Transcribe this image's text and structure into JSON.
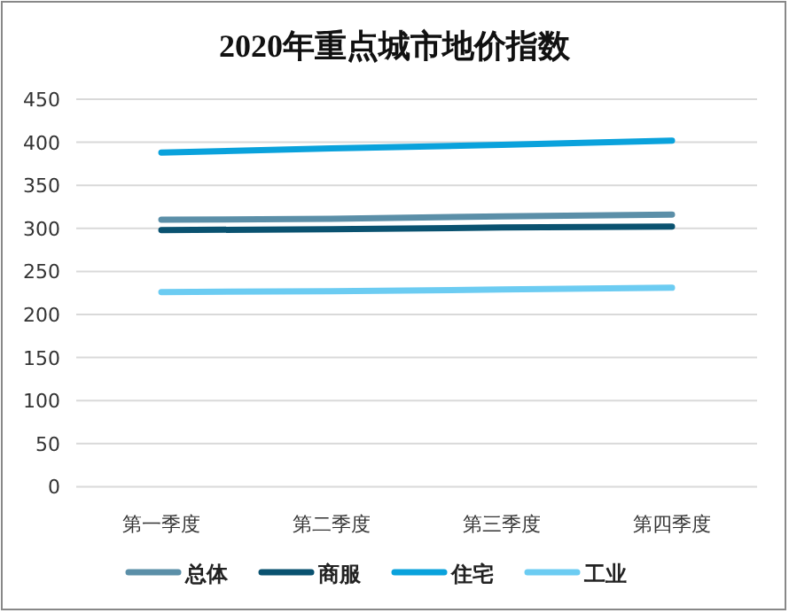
{
  "chart_data": {
    "type": "line",
    "title": "2020年重点城市地价指数",
    "categories": [
      "第一季度",
      "第二季度",
      "第三季度",
      "第四季度"
    ],
    "series": [
      {
        "name": "总体",
        "color": "#5b8fa8",
        "values": [
          310,
          311,
          314,
          316
        ]
      },
      {
        "name": "商服",
        "color": "#0a5270",
        "values": [
          298,
          299,
          301,
          302
        ]
      },
      {
        "name": "住宅",
        "color": "#0aa2dc",
        "values": [
          388,
          393,
          397,
          402
        ]
      },
      {
        "name": "工业",
        "color": "#6cccf2",
        "values": [
          226,
          227,
          229,
          231
        ]
      }
    ],
    "ylim": [
      0,
      450
    ],
    "yticks": [
      0,
      50,
      100,
      150,
      200,
      250,
      300,
      350,
      400,
      450
    ],
    "grid": "y",
    "legend": "bottom",
    "marker": "none",
    "line_style": "solid"
  }
}
